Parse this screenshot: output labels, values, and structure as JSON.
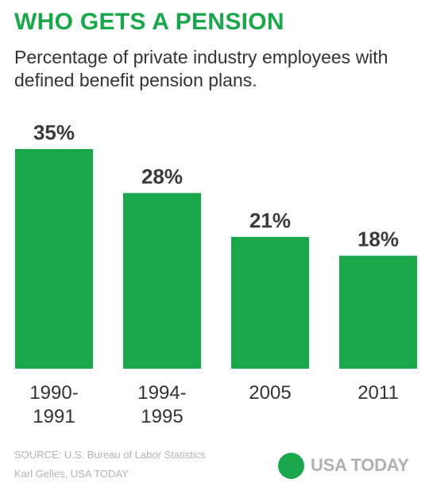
{
  "title": "WHO GETS A PENSION",
  "subtitle": "Percentage of private industry employees with defined benefit pension plans.",
  "source": "SOURCE: U.S. Bureau of Labor Statistics",
  "credit": "Karl Gelles, USA TODAY",
  "brand": {
    "text": "USA TODAY",
    "color": "#1aa64a"
  },
  "colors": {
    "bar": "#1aa64a",
    "title": "#1aa64a",
    "text": "#333333"
  },
  "chart_data": {
    "type": "bar",
    "title": "WHO GETS A PENSION",
    "categories": [
      [
        "1990-",
        "1991"
      ],
      [
        "1994-",
        "1995"
      ],
      [
        "2005"
      ],
      [
        "2011"
      ]
    ],
    "values": [
      35,
      28,
      21,
      18
    ],
    "value_labels": [
      "35%",
      "28%",
      "21%",
      "18%"
    ],
    "unit": "%",
    "ylim": [
      0,
      35
    ],
    "grid": false,
    "legend": "none"
  }
}
